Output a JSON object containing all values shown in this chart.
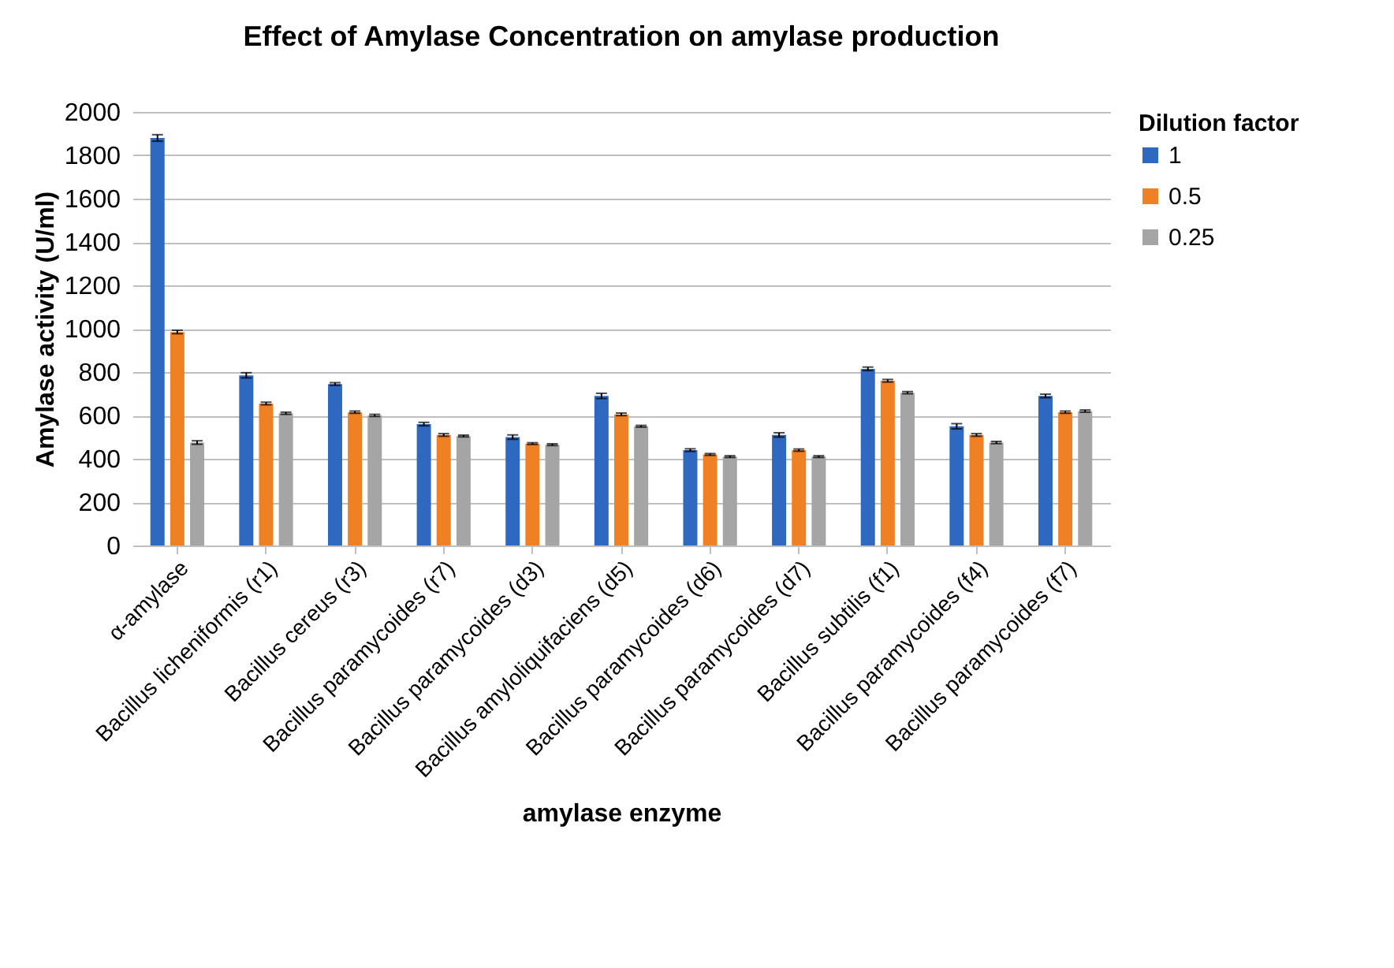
{
  "chart_data": {
    "type": "bar",
    "title": "Effect of Amylase Concentration on amylase production",
    "xlabel": "amylase enzyme",
    "ylabel": "Amylase activity (U/ml)",
    "legend_title": "Dilution factor",
    "categories": [
      "α-amylase",
      "Bacillus licheniformis (r1)",
      "Bacillus cereus (r3)",
      "Bacillus paramycoides (r7)",
      "Bacillus paramycoides (d3)",
      "Bacillus amyloliquifaciens (d5)",
      "Bacillus paramycoides (d6)",
      "Bacillus paramycoides (d7)",
      "Bacillus subtilis (f1)",
      "Bacillus paramycoides (f4)",
      "Bacillus paramycoides (f7)"
    ],
    "series": [
      {
        "name": "1",
        "color": "#2e68c0",
        "values": [
          1880,
          785,
          745,
          560,
          500,
          690,
          440,
          510,
          815,
          550,
          690
        ],
        "errors": [
          15,
          12,
          6,
          8,
          10,
          12,
          6,
          10,
          8,
          12,
          8
        ]
      },
      {
        "name": "0.5",
        "color": "#f08024",
        "values": [
          985,
          655,
          615,
          510,
          470,
          605,
          420,
          440,
          760,
          510,
          615
        ],
        "errors": [
          8,
          6,
          5,
          6,
          4,
          6,
          4,
          5,
          6,
          6,
          5
        ]
      },
      {
        "name": "0.25",
        "color": "#a5a5a5",
        "values": [
          475,
          610,
          600,
          505,
          465,
          550,
          410,
          410,
          705,
          475,
          620
        ],
        "errors": [
          8,
          5,
          5,
          4,
          4,
          4,
          4,
          4,
          5,
          5,
          5
        ]
      }
    ],
    "ylim": [
      0,
      2000
    ],
    "yticks": [
      0,
      200,
      400,
      600,
      800,
      1000,
      1200,
      1400,
      1600,
      1800,
      2000
    ],
    "grid": "y",
    "legend": "right"
  }
}
